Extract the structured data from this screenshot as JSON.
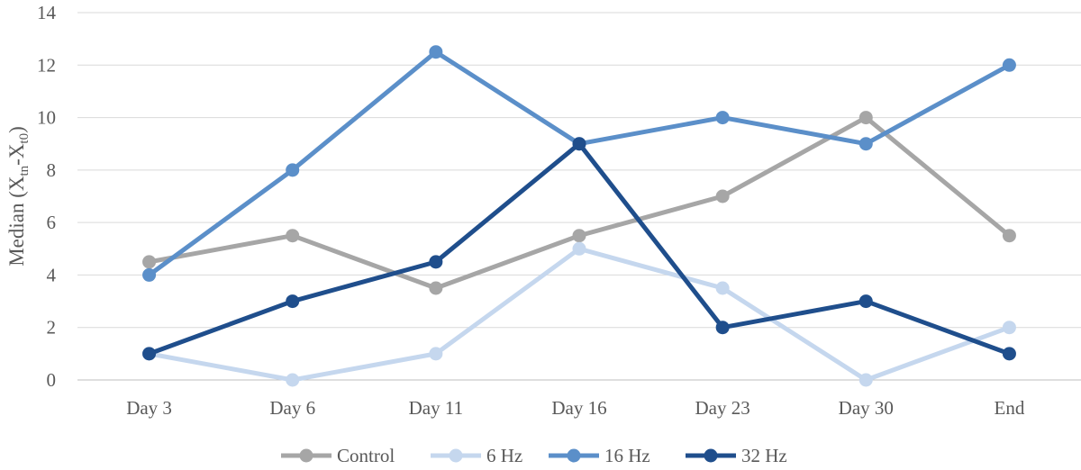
{
  "chart_data": {
    "type": "line",
    "title": "",
    "xlabel": "",
    "ylabel": "Median (Xₜₙ-Xₜ₀)",
    "ylabel_parts": {
      "main": "Median (X",
      "sub1": "tn",
      "mid": "-X",
      "sub2": "t0",
      "end": ")"
    },
    "ylim": [
      0,
      14
    ],
    "y_ticks": [
      0,
      2,
      4,
      6,
      8,
      10,
      12,
      14
    ],
    "y_tick_labels": [
      "0",
      "2",
      "4",
      "6",
      "8",
      "10",
      "12",
      "14"
    ],
    "grid": true,
    "legend_position": "bottom",
    "categories": [
      "Day 3",
      "Day 6",
      "Day 11",
      "Day 16",
      "Day 23",
      "Day 30",
      "End"
    ],
    "series": [
      {
        "name": "Control",
        "color": "#a6a6a6",
        "values": [
          4.5,
          5.5,
          3.5,
          5.5,
          7,
          10,
          5.5
        ]
      },
      {
        "name": "6 Hz",
        "color": "#c5d7ee",
        "values": [
          1,
          0,
          1,
          5,
          3.5,
          0,
          2
        ]
      },
      {
        "name": "16 Hz",
        "color": "#5b8fc9",
        "values": [
          4,
          8,
          12.5,
          9,
          10,
          9,
          12
        ]
      },
      {
        "name": "32 Hz",
        "color": "#1f4e8c",
        "values": [
          1,
          3,
          4.5,
          9,
          2,
          3,
          1
        ]
      }
    ]
  }
}
